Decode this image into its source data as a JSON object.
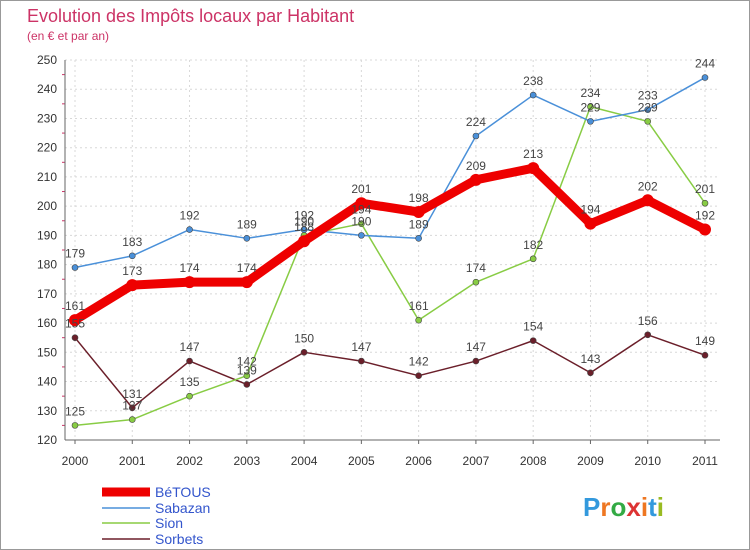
{
  "chart_data": {
    "type": "line",
    "title": "Evolution des Impôts locaux par Habitant",
    "subtitle": "(en € et par an)",
    "categories": [
      "2000",
      "2001",
      "2002",
      "2003",
      "2004",
      "2005",
      "2006",
      "2007",
      "2008",
      "2009",
      "2010",
      "2011"
    ],
    "ylim": [
      120,
      250
    ],
    "yticks": [
      120,
      130,
      140,
      150,
      160,
      170,
      180,
      190,
      200,
      210,
      220,
      230,
      240,
      250
    ],
    "grid": true,
    "legend_position": "bottom-left",
    "series": [
      {
        "name": "Sorbets",
        "color": "#6b1f2a",
        "values": [
          155,
          131,
          147,
          139,
          150,
          147,
          142,
          147,
          154,
          143,
          156,
          149
        ],
        "labels": [
          "155",
          "131",
          "147",
          "139",
          "150",
          "147",
          "142",
          "147",
          "154",
          "143",
          "156",
          "149"
        ]
      },
      {
        "name": "Sion",
        "color": "#88cc44",
        "values": [
          125,
          127,
          135,
          142,
          190,
          194,
          161,
          174,
          182,
          234,
          229,
          201
        ],
        "labels": [
          "125",
          "127",
          "135",
          "142",
          "190",
          "194",
          "161",
          "174",
          "182",
          "234",
          "229",
          "201"
        ]
      },
      {
        "name": "Sabazan",
        "color": "#4a90d9",
        "values": [
          179,
          183,
          192,
          189,
          192,
          190,
          189,
          224,
          238,
          229,
          233,
          244
        ],
        "labels": [
          "179",
          "183",
          "192",
          "189",
          "192",
          "190",
          "189",
          "224",
          "238",
          "229",
          "233",
          "244"
        ]
      },
      {
        "name": "BéTOUS",
        "color": "#ee0000",
        "values": [
          161,
          173,
          174,
          174,
          188,
          201,
          198,
          209,
          213,
          194,
          202,
          192
        ],
        "labels": [
          "161",
          "173",
          "174",
          "174",
          "188",
          "201",
          "198",
          "209",
          "213",
          "194",
          "202",
          "192"
        ]
      }
    ],
    "legend": [
      "BéTOUS",
      "Sabazan",
      "Sion",
      "Sorbets"
    ]
  },
  "logo": {
    "text": "Proxiti",
    "letters": [
      "P",
      "r",
      "o",
      "x",
      "i",
      "t",
      "i"
    ],
    "colors": [
      "#3399dd",
      "#ee7722",
      "#33aa44",
      "#dd3333",
      "#ee7722",
      "#3399dd",
      "#99bb22"
    ]
  }
}
